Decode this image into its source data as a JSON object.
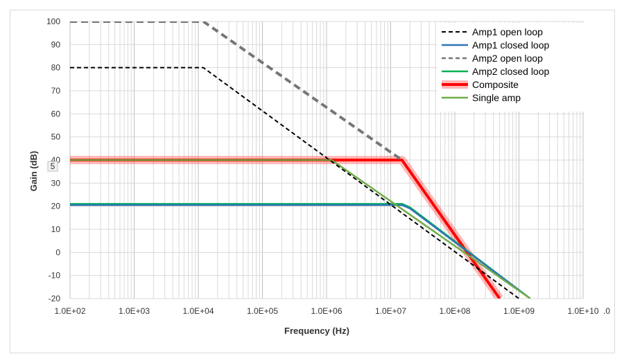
{
  "chart_data": {
    "type": "line",
    "xlabel": "Frequency (Hz)",
    "ylabel": "Gain (dB)",
    "x_scale": "log",
    "xlim": [
      100,
      10000000000
    ],
    "ylim": [
      -20,
      100
    ],
    "x_ticks": [
      {
        "value": 100,
        "label": "1.0E+02"
      },
      {
        "value": 1000,
        "label": "1.0E+03"
      },
      {
        "value": 10000,
        "label": "1.0E+04"
      },
      {
        "value": 100000,
        "label": "1.0E+05"
      },
      {
        "value": 1000000,
        "label": "1.0E+06"
      },
      {
        "value": 10000000,
        "label": "1.0E+07"
      },
      {
        "value": 100000000,
        "label": "1.0E+08"
      },
      {
        "value": 1000000000,
        "label": "1.0E+09"
      },
      {
        "value": 10000000000,
        "label": "1.0E+10"
      }
    ],
    "x_tick_overflow_label": ".0",
    "y_ticks": [
      -20,
      -10,
      0,
      10,
      20,
      30,
      40,
      50,
      60,
      70,
      80,
      90,
      100
    ],
    "y_tick_overlay_label": "5",
    "grid": "major-and-minor",
    "legend_position": "top-right",
    "series": [
      {
        "name": "Amp1 open loop",
        "style": "dashed",
        "color": "#000000",
        "points": [
          [
            100,
            80
          ],
          [
            12000,
            80
          ],
          [
            1000000000,
            -20
          ]
        ]
      },
      {
        "name": "Amp1 closed loop",
        "style": "solid",
        "color": "#2e75b6",
        "points": [
          [
            100,
            20.5
          ],
          [
            15000000,
            20.5
          ],
          [
            20000000,
            19
          ],
          [
            1500000000,
            -20
          ]
        ]
      },
      {
        "name": "Amp2 open loop",
        "style": "thick-dashed",
        "color": "#767676",
        "points": [
          [
            100,
            100
          ],
          [
            12000,
            100
          ],
          [
            15000000,
            40
          ]
        ]
      },
      {
        "name": "Amp2 closed loop",
        "style": "solid",
        "color": "#00b050",
        "points": [
          [
            100,
            21
          ],
          [
            15000000,
            21
          ],
          [
            20000000,
            19.5
          ],
          [
            1500000000,
            -20
          ]
        ]
      },
      {
        "name": "Composite",
        "style": "thick-glow",
        "color": "#ff0000",
        "points": [
          [
            100,
            40
          ],
          [
            15000000,
            40
          ],
          [
            500000000,
            -20
          ]
        ]
      },
      {
        "name": "Single amp",
        "style": "solid",
        "color": "#70ad47",
        "points": [
          [
            100,
            40
          ],
          [
            1200000,
            40
          ],
          [
            1500000000,
            -20
          ]
        ]
      }
    ]
  }
}
